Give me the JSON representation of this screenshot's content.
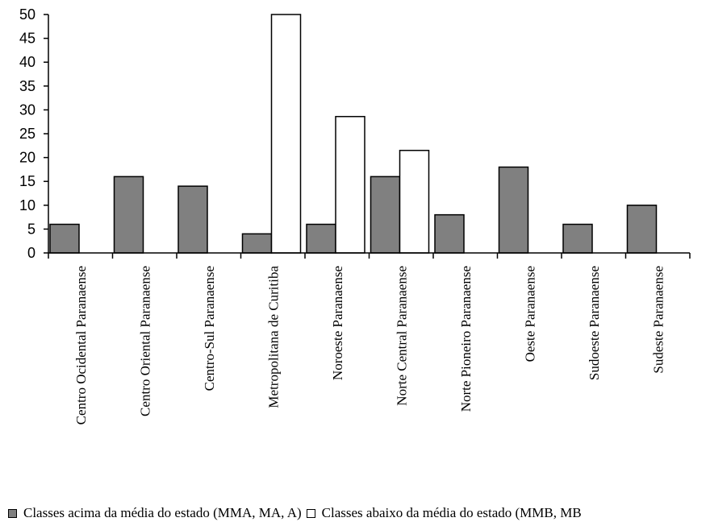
{
  "chart_data": {
    "type": "bar",
    "categories": [
      "Centro Ocidental Paranaense",
      "Centro Oriental Paranaense",
      "Centro-Sul Paranaense",
      "Metropolitana de Curitiba",
      "Noroeste Paranaense",
      "Norte Central Paranaense",
      "Norte Pioneiro Paranaense",
      "Oeste Paranaense",
      "Sudoeste Paranaense",
      "Sudeste Paranaense"
    ],
    "series": [
      {
        "name": "Classes acima da média do estado (MMA, MA, A)",
        "values": [
          6,
          16,
          14,
          4,
          6,
          16,
          8,
          18,
          6,
          10
        ],
        "color": "#808080"
      },
      {
        "name": "Classes abaixo da média do estado (MMB, MB",
        "values": [
          0,
          0,
          0,
          50,
          28.6,
          21.5,
          0,
          0,
          0,
          0
        ],
        "color": "#ffffff"
      }
    ],
    "ylim": [
      0,
      50
    ],
    "yticks": [
      0,
      5,
      10,
      15,
      20,
      25,
      30,
      35,
      40,
      45,
      50
    ],
    "grid": false,
    "legend_position": "bottom",
    "xlabel": "",
    "ylabel": "",
    "title": ""
  }
}
